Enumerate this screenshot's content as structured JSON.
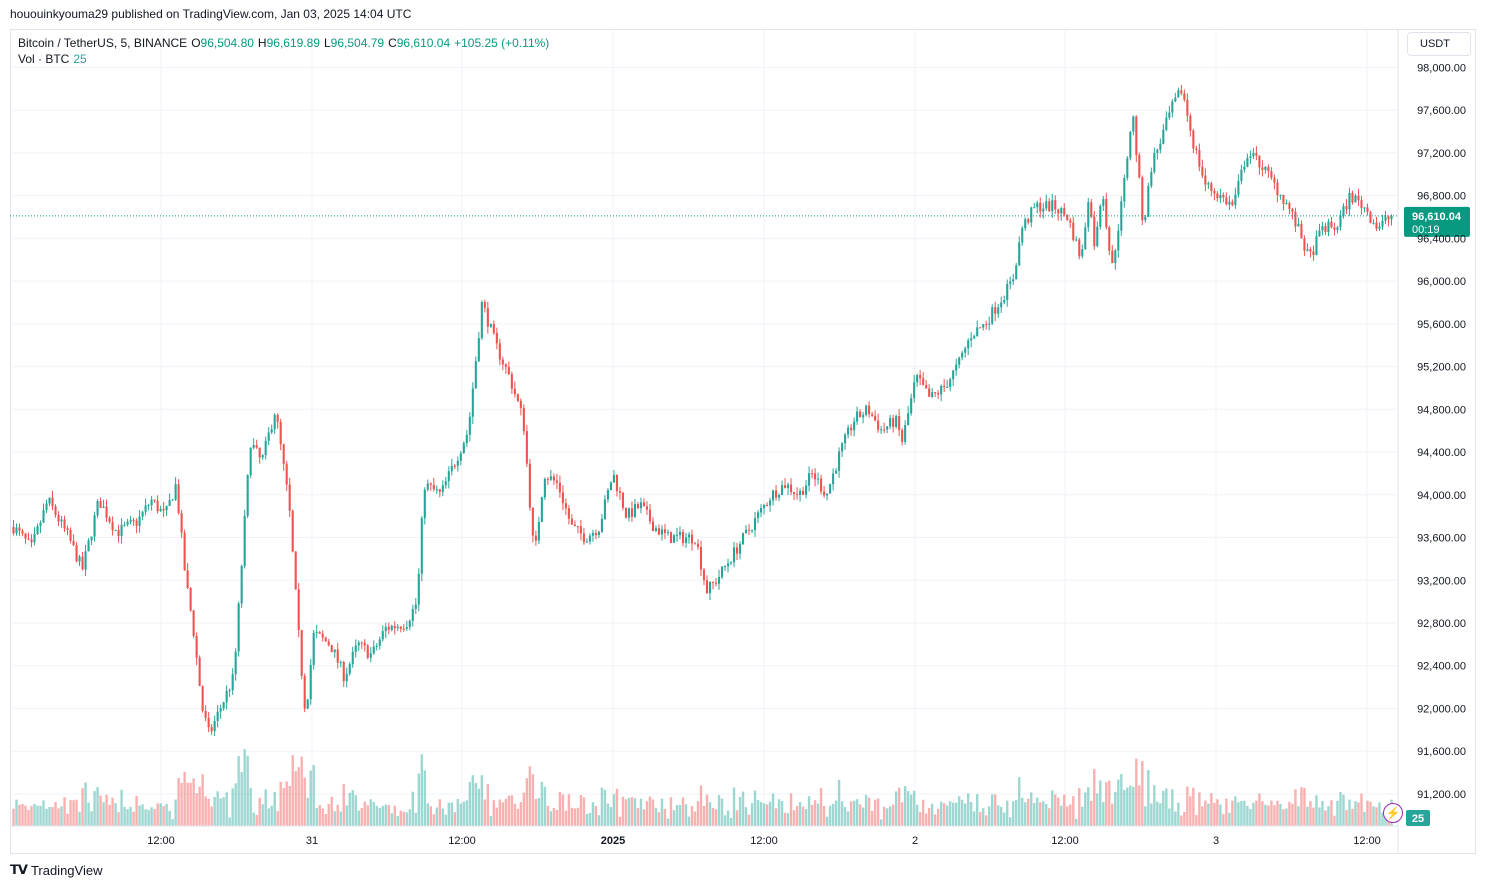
{
  "header": {
    "publish_line": "hououinkyouma29 published on TradingView.com, Jan 03, 2025 14:04 UTC"
  },
  "legend": {
    "symbol": "Bitcoin / TetherUS, 5, BINANCE",
    "open_label": "O",
    "open": "96,504.80",
    "high_label": "H",
    "high": "96,619.89",
    "low_label": "L",
    "low": "96,504.79",
    "close_label": "C",
    "close": "96,610.04",
    "change": "+105.25 (+0.11%)",
    "volume_label": "Vol · BTC",
    "volume_value": "25"
  },
  "currency_button": "USDT",
  "price_label": {
    "price": "96,610.04",
    "countdown": "00:19"
  },
  "volume_axis_label": "25",
  "footer": {
    "brand": "TradingView"
  },
  "colors": {
    "up": "#26a69a",
    "down": "#ef5350",
    "grid": "#f0f3fa",
    "last_price": "#089981"
  },
  "chart_data": {
    "type": "candlestick",
    "timeframe": "5",
    "y_ticks": [
      "91,200.00",
      "91,600.00",
      "92,000.00",
      "92,400.00",
      "92,800.00",
      "93,200.00",
      "93,600.00",
      "94,000.00",
      "94,400.00",
      "94,800.00",
      "95,200.00",
      "95,600.00",
      "96,000.00",
      "96,400.00",
      "96,800.00",
      "97,200.00",
      "97,600.00",
      "98,000.00"
    ],
    "ylim": [
      90900,
      98350
    ],
    "x_ticks": [
      "12:00",
      "31",
      "12:00",
      "2025",
      "12:00",
      "2",
      "12:00",
      "3",
      "12:00"
    ],
    "last_price": 96610.04,
    "price_path": [
      [
        0.0,
        93700
      ],
      [
        0.013,
        93500
      ],
      [
        0.025,
        93950
      ],
      [
        0.04,
        93600
      ],
      [
        0.05,
        93300
      ],
      [
        0.062,
        93950
      ],
      [
        0.075,
        93650
      ],
      [
        0.09,
        93750
      ],
      [
        0.1,
        93950
      ],
      [
        0.11,
        93800
      ],
      [
        0.118,
        94100
      ],
      [
        0.125,
        93200
      ],
      [
        0.13,
        92800
      ],
      [
        0.137,
        92000
      ],
      [
        0.142,
        91750
      ],
      [
        0.15,
        92000
      ],
      [
        0.16,
        92300
      ],
      [
        0.168,
        93800
      ],
      [
        0.172,
        94500
      ],
      [
        0.18,
        94300
      ],
      [
        0.19,
        94800
      ],
      [
        0.2,
        93900
      ],
      [
        0.208,
        92500
      ],
      [
        0.212,
        91950
      ],
      [
        0.218,
        92700
      ],
      [
        0.23,
        92600
      ],
      [
        0.24,
        92300
      ],
      [
        0.25,
        92600
      ],
      [
        0.26,
        92500
      ],
      [
        0.27,
        92750
      ],
      [
        0.285,
        92800
      ],
      [
        0.293,
        93000
      ],
      [
        0.298,
        94100
      ],
      [
        0.31,
        94000
      ],
      [
        0.32,
        94300
      ],
      [
        0.33,
        94600
      ],
      [
        0.34,
        95800
      ],
      [
        0.35,
        95400
      ],
      [
        0.36,
        95100
      ],
      [
        0.37,
        94700
      ],
      [
        0.378,
        93400
      ],
      [
        0.385,
        94200
      ],
      [
        0.395,
        94100
      ],
      [
        0.405,
        93700
      ],
      [
        0.415,
        93600
      ],
      [
        0.425,
        93700
      ],
      [
        0.435,
        94200
      ],
      [
        0.445,
        93800
      ],
      [
        0.455,
        93900
      ],
      [
        0.465,
        93700
      ],
      [
        0.475,
        93600
      ],
      [
        0.485,
        93600
      ],
      [
        0.495,
        93600
      ],
      [
        0.503,
        93100
      ],
      [
        0.51,
        93200
      ],
      [
        0.52,
        93400
      ],
      [
        0.53,
        93600
      ],
      [
        0.54,
        93800
      ],
      [
        0.55,
        94000
      ],
      [
        0.56,
        94100
      ],
      [
        0.57,
        94000
      ],
      [
        0.58,
        94200
      ],
      [
        0.59,
        94000
      ],
      [
        0.6,
        94400
      ],
      [
        0.61,
        94700
      ],
      [
        0.62,
        94800
      ],
      [
        0.63,
        94600
      ],
      [
        0.64,
        94700
      ],
      [
        0.645,
        94500
      ],
      [
        0.655,
        95100
      ],
      [
        0.665,
        94900
      ],
      [
        0.675,
        95000
      ],
      [
        0.685,
        95200
      ],
      [
        0.695,
        95500
      ],
      [
        0.705,
        95600
      ],
      [
        0.715,
        95800
      ],
      [
        0.725,
        96000
      ],
      [
        0.732,
        96500
      ],
      [
        0.742,
        96700
      ],
      [
        0.755,
        96700
      ],
      [
        0.765,
        96600
      ],
      [
        0.775,
        96200
      ],
      [
        0.78,
        96800
      ],
      [
        0.785,
        96300
      ],
      [
        0.79,
        96900
      ],
      [
        0.797,
        96100
      ],
      [
        0.805,
        96800
      ],
      [
        0.812,
        97600
      ],
      [
        0.82,
        96500
      ],
      [
        0.826,
        97100
      ],
      [
        0.832,
        97300
      ],
      [
        0.84,
        97600
      ],
      [
        0.848,
        97800
      ],
      [
        0.856,
        97300
      ],
      [
        0.865,
        96900
      ],
      [
        0.875,
        96800
      ],
      [
        0.885,
        96700
      ],
      [
        0.895,
        97200
      ],
      [
        0.905,
        97100
      ],
      [
        0.915,
        96900
      ],
      [
        0.925,
        96700
      ],
      [
        0.935,
        96400
      ],
      [
        0.94,
        96200
      ],
      [
        0.95,
        96500
      ],
      [
        0.96,
        96500
      ],
      [
        0.97,
        96800
      ],
      [
        0.98,
        96700
      ],
      [
        0.99,
        96500
      ],
      [
        1.0,
        96610
      ]
    ]
  }
}
